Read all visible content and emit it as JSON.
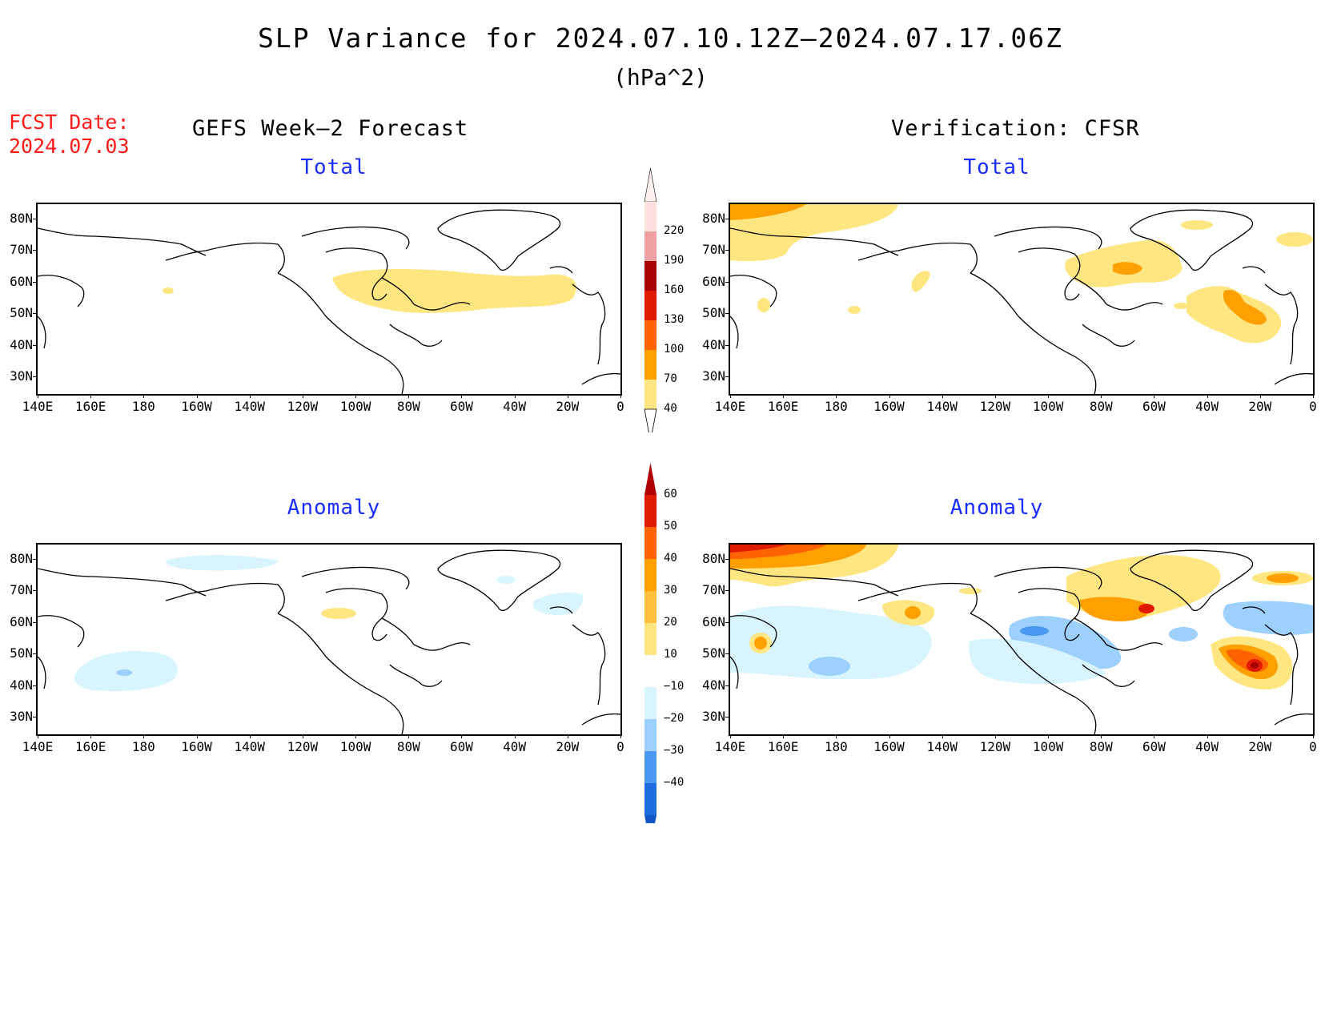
{
  "title": "SLP Variance for 2024.07.10.12Z–2024.07.17.06Z",
  "units": "(hPa^2)",
  "fcst_date_label": "FCST Date:",
  "fcst_date_value": "2024.07.03",
  "columns": {
    "left": "GEFS Week–2 Forecast",
    "right": "Verification: CFSR"
  },
  "panels": {
    "forecast_total": {
      "title": "Total"
    },
    "verif_total": {
      "title": "Total"
    },
    "forecast_anomaly": {
      "title": "Anomaly"
    },
    "verif_anomaly": {
      "title": "Anomaly"
    }
  },
  "lat_labels": [
    "80N",
    "70N",
    "60N",
    "50N",
    "40N",
    "30N"
  ],
  "lon_labels": [
    "140E",
    "160E",
    "180",
    "160W",
    "140W",
    "120W",
    "100W",
    "80W",
    "60W",
    "40W",
    "20W",
    "0"
  ],
  "colorbar_total": {
    "levels": [
      "40",
      "70",
      "100",
      "130",
      "160",
      "190",
      "220"
    ],
    "colors": [
      "#ffe680",
      "#ffa000",
      "#ff6200",
      "#e01a00",
      "#a80000",
      "#f0a0a0",
      "#ffe0e0"
    ]
  },
  "colorbar_anomaly": {
    "levels": [
      "60",
      "50",
      "40",
      "30",
      "20",
      "10",
      "−10",
      "−20",
      "−30",
      "−40"
    ],
    "colors": [
      "#b00000",
      "#e01a00",
      "#ff6200",
      "#ffa000",
      "#ffc040",
      "#ffe680",
      "#ffffff",
      "#d8f4ff",
      "#9cd0ff",
      "#4a98f0",
      "#1e6ee0",
      "#1256c8"
    ]
  },
  "chart_data": [
    {
      "type": "heatmap",
      "title": "Total",
      "series": [
        {
          "name": "GEFS Week–2 Forecast"
        }
      ],
      "features": [
        {
          "lon": -75,
          "lat": 58,
          "level": "40-70"
        },
        {
          "lon": -40,
          "lat": 58,
          "level": "40-70"
        }
      ]
    },
    {
      "type": "heatmap",
      "title": "Total",
      "series": [
        {
          "name": "Verification: CFSR"
        }
      ],
      "features": [
        {
          "lon": 160,
          "lat": 82,
          "level": "70-100"
        },
        {
          "lon": -60,
          "lat": 64,
          "level": "70-100"
        },
        {
          "lon": -25,
          "lat": 50,
          "level": "70-100"
        }
      ]
    },
    {
      "type": "heatmap",
      "title": "Anomaly",
      "series": [
        {
          "name": "GEFS Week–2 Forecast"
        }
      ],
      "features": [
        {
          "lon": -175,
          "lat": 45,
          "level": "-10 to -20"
        },
        {
          "lon": -115,
          "lat": 64,
          "level": "10-20"
        }
      ]
    },
    {
      "type": "heatmap",
      "title": "Anomaly",
      "series": [
        {
          "name": "Verification: CFSR"
        }
      ],
      "features": [
        {
          "lon": 150,
          "lat": 84,
          "level": ">60"
        },
        {
          "lon": -60,
          "lat": 64,
          "level": "40-50"
        },
        {
          "lon": -20,
          "lat": 46,
          "level": "50-60"
        },
        {
          "lon": -90,
          "lat": 56,
          "level": "-20 to -30"
        },
        {
          "lon": -30,
          "lat": 62,
          "level": "-10 to -20"
        }
      ]
    }
  ]
}
